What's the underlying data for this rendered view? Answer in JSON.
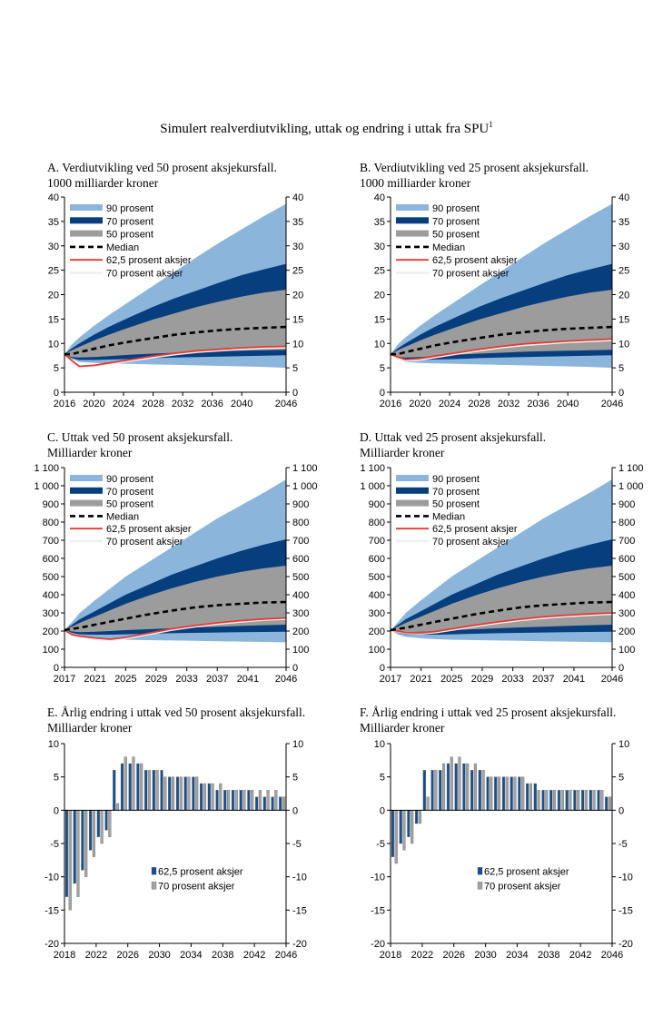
{
  "title": "Simulert realverdiutvikling, uttak og endring i uttak fra SPU",
  "title_footnote": "1",
  "colors": {
    "p90": "#8cb5dc",
    "p70": "#063e7e",
    "p50": "#9c9c9c",
    "median": "#000000",
    "s625": "#e23a32",
    "s70": "#f0efef",
    "bar625": "#17508f",
    "bar70": "#a3a3a3"
  },
  "chart_data": [
    {
      "id": "A",
      "type": "area",
      "title_line1": "A. Verdiutvikling ved 50 prosent aksjekursfall.",
      "title_line2": "1000 milliarder kroner",
      "x_start": 2016,
      "x_end": 2046,
      "x_ticks": [
        "2016",
        "2020",
        "2024",
        "2028",
        "2032",
        "2036",
        "2040",
        "2046"
      ],
      "x_tick_values": [
        2016,
        2020,
        2024,
        2028,
        2032,
        2036,
        2040,
        2046
      ],
      "ylim": [
        0,
        40
      ],
      "y_step": 5,
      "y_ticks": [
        "0",
        "5",
        "10",
        "15",
        "20",
        "25",
        "30",
        "35",
        "40"
      ],
      "legend": [
        "90 prosent",
        "70 prosent",
        "50 prosent",
        "Median",
        "62,5 prosent aksjer",
        "70 prosent aksjer"
      ],
      "series_x": [
        2016,
        2017,
        2018,
        2020,
        2022,
        2025,
        2028,
        2031,
        2034,
        2037,
        2040,
        2043,
        2046
      ],
      "bands": {
        "p90_low": [
          7.8,
          6.8,
          6.2,
          6.0,
          5.9,
          5.8,
          5.7,
          5.6,
          5.5,
          5.4,
          5.3,
          5.2,
          5.0
        ],
        "p70_low": [
          7.8,
          7.0,
          6.6,
          6.6,
          6.7,
          6.8,
          7.0,
          7.1,
          7.2,
          7.3,
          7.4,
          7.5,
          7.6
        ],
        "p50_low": [
          7.8,
          7.2,
          7.1,
          7.2,
          7.4,
          7.7,
          7.9,
          8.1,
          8.3,
          8.4,
          8.5,
          8.6,
          8.7
        ],
        "p50_high": [
          7.8,
          8.6,
          9.3,
          10.6,
          11.8,
          13.4,
          14.9,
          16.2,
          17.5,
          18.6,
          19.6,
          20.4,
          21.0
        ],
        "p70_high": [
          7.8,
          9.0,
          10.0,
          11.8,
          13.4,
          15.5,
          17.5,
          19.3,
          20.9,
          22.5,
          24.0,
          25.2,
          26.3
        ],
        "p90_high": [
          7.8,
          9.8,
          11.2,
          13.6,
          15.8,
          18.8,
          21.8,
          24.8,
          27.8,
          30.7,
          33.4,
          36.1,
          38.6
        ]
      },
      "lines": {
        "median": [
          7.8,
          7.8,
          8.2,
          8.9,
          9.6,
          10.4,
          11.1,
          11.8,
          12.3,
          12.7,
          13.0,
          13.2,
          13.4
        ],
        "s625": [
          7.8,
          6.5,
          5.3,
          5.5,
          6.0,
          6.7,
          7.4,
          8.0,
          8.5,
          8.8,
          9.1,
          9.3,
          9.4
        ],
        "s70": [
          7.8,
          6.3,
          5.0,
          5.3,
          5.8,
          6.5,
          7.2,
          7.8,
          8.3,
          8.6,
          8.9,
          9.1,
          9.2
        ]
      }
    },
    {
      "id": "B",
      "type": "area",
      "title_line1": "B. Verdiutvikling ved 25 prosent aksjekursfall.",
      "title_line2": "1000 milliarder kroner",
      "x_start": 2016,
      "x_end": 2046,
      "x_ticks": [
        "2016",
        "2020",
        "2024",
        "2028",
        "2032",
        "2036",
        "2040",
        "2046"
      ],
      "x_tick_values": [
        2016,
        2020,
        2024,
        2028,
        2032,
        2036,
        2040,
        2046
      ],
      "ylim": [
        0,
        40
      ],
      "y_step": 5,
      "y_ticks": [
        "0",
        "5",
        "10",
        "15",
        "20",
        "25",
        "30",
        "35",
        "40"
      ],
      "legend": [
        "90 prosent",
        "70 prosent",
        "50 prosent",
        "Median",
        "62,5 prosent aksjer",
        "70 prosent aksjer"
      ],
      "series_x": [
        2016,
        2017,
        2018,
        2020,
        2022,
        2025,
        2028,
        2031,
        2034,
        2037,
        2040,
        2043,
        2046
      ],
      "bands": {
        "p90_low": [
          7.8,
          6.8,
          6.2,
          6.0,
          5.9,
          5.8,
          5.7,
          5.6,
          5.5,
          5.4,
          5.3,
          5.2,
          5.0
        ],
        "p70_low": [
          7.8,
          7.0,
          6.6,
          6.6,
          6.7,
          6.8,
          7.0,
          7.1,
          7.2,
          7.3,
          7.4,
          7.5,
          7.6
        ],
        "p50_low": [
          7.8,
          7.2,
          7.1,
          7.2,
          7.4,
          7.7,
          7.9,
          8.1,
          8.3,
          8.4,
          8.5,
          8.6,
          8.7
        ],
        "p50_high": [
          7.8,
          8.6,
          9.3,
          10.6,
          11.8,
          13.4,
          14.9,
          16.2,
          17.5,
          18.6,
          19.6,
          20.4,
          21.0
        ],
        "p70_high": [
          7.8,
          9.0,
          10.0,
          11.8,
          13.4,
          15.5,
          17.5,
          19.3,
          20.9,
          22.5,
          24.0,
          25.2,
          26.3
        ],
        "p90_high": [
          7.8,
          9.8,
          11.2,
          13.6,
          15.8,
          18.8,
          21.8,
          24.8,
          27.8,
          30.7,
          33.4,
          36.1,
          38.6
        ]
      },
      "lines": {
        "median": [
          7.8,
          7.8,
          8.2,
          8.9,
          9.6,
          10.4,
          11.1,
          11.8,
          12.3,
          12.7,
          13.0,
          13.2,
          13.4
        ],
        "s625": [
          7.8,
          7.2,
          6.7,
          6.9,
          7.4,
          8.1,
          8.8,
          9.4,
          9.9,
          10.2,
          10.5,
          10.7,
          10.9
        ],
        "s70": [
          7.8,
          7.0,
          6.5,
          6.7,
          7.2,
          7.9,
          8.6,
          9.2,
          9.7,
          10.0,
          10.3,
          10.5,
          10.7
        ]
      }
    },
    {
      "id": "C",
      "type": "area",
      "title_line1": "C. Uttak ved 50 prosent aksjekursfall.",
      "title_line2": "Milliarder kroner",
      "x_start": 2017,
      "x_end": 2046,
      "x_ticks": [
        "2017",
        "2021",
        "2025",
        "2029",
        "2033",
        "2037",
        "2041",
        "2046"
      ],
      "x_tick_values": [
        2017,
        2021,
        2025,
        2029,
        2033,
        2037,
        2041,
        2046
      ],
      "ylim": [
        0,
        1100
      ],
      "y_step": 100,
      "y_ticks": [
        "0",
        "100",
        "200",
        "300",
        "400",
        "500",
        "600",
        "700",
        "800",
        "900",
        "1 000",
        "1 100"
      ],
      "legend": [
        "90 prosent",
        "70 prosent",
        "50 prosent",
        "Median",
        "62,5 prosent aksjer",
        "70 prosent aksjer"
      ],
      "series_x": [
        2017,
        2018,
        2019,
        2021,
        2023,
        2025,
        2028,
        2031,
        2034,
        2037,
        2040,
        2043,
        2046
      ],
      "bands": {
        "p90_low": [
          205,
          180,
          168,
          160,
          155,
          152,
          150,
          148,
          146,
          144,
          142,
          140,
          138
        ],
        "p70_low": [
          205,
          190,
          182,
          180,
          180,
          182,
          185,
          188,
          190,
          192,
          194,
          195,
          196
        ],
        "p50_low": [
          205,
          198,
          194,
          196,
          200,
          205,
          210,
          215,
          220,
          224,
          228,
          232,
          235
        ],
        "p50_high": [
          205,
          225,
          245,
          280,
          315,
          350,
          395,
          435,
          470,
          500,
          525,
          545,
          560
        ],
        "p70_high": [
          205,
          235,
          265,
          310,
          355,
          400,
          455,
          510,
          555,
          600,
          640,
          675,
          705
        ],
        "p90_high": [
          205,
          250,
          300,
          370,
          435,
          500,
          580,
          660,
          740,
          820,
          890,
          960,
          1035
        ]
      },
      "lines": {
        "median": [
          205,
          212,
          218,
          235,
          252,
          268,
          292,
          312,
          330,
          342,
          350,
          357,
          360
        ],
        "s625": [
          205,
          180,
          172,
          162,
          155,
          165,
          188,
          212,
          230,
          245,
          257,
          266,
          272
        ],
        "s70": [
          205,
          178,
          170,
          158,
          150,
          160,
          183,
          207,
          225,
          240,
          252,
          262,
          268
        ]
      }
    },
    {
      "id": "D",
      "type": "area",
      "title_line1": "D. Uttak ved 25 prosent aksjekursfall.",
      "title_line2": "Milliarder kroner",
      "x_start": 2017,
      "x_end": 2046,
      "x_ticks": [
        "2017",
        "2021",
        "2025",
        "2029",
        "2033",
        "2037",
        "2041",
        "2046"
      ],
      "x_tick_values": [
        2017,
        2021,
        2025,
        2029,
        2033,
        2037,
        2041,
        2046
      ],
      "ylim": [
        0,
        1100
      ],
      "y_step": 100,
      "y_ticks": [
        "0",
        "100",
        "200",
        "300",
        "400",
        "500",
        "600",
        "700",
        "800",
        "900",
        "1 000",
        "1 100"
      ],
      "legend": [
        "90 prosent",
        "70 prosent",
        "50 prosent",
        "Median",
        "62,5 prosent aksjer",
        "70 prosent aksjer"
      ],
      "series_x": [
        2017,
        2018,
        2019,
        2021,
        2023,
        2025,
        2028,
        2031,
        2034,
        2037,
        2040,
        2043,
        2046
      ],
      "bands": {
        "p90_low": [
          205,
          180,
          168,
          160,
          155,
          152,
          150,
          148,
          146,
          144,
          142,
          140,
          138
        ],
        "p70_low": [
          205,
          190,
          182,
          180,
          180,
          182,
          185,
          188,
          190,
          192,
          194,
          195,
          196
        ],
        "p50_low": [
          205,
          198,
          194,
          196,
          200,
          205,
          210,
          215,
          220,
          224,
          228,
          232,
          235
        ],
        "p50_high": [
          205,
          225,
          245,
          280,
          315,
          350,
          395,
          435,
          470,
          500,
          525,
          545,
          560
        ],
        "p70_high": [
          205,
          235,
          265,
          310,
          355,
          400,
          455,
          510,
          555,
          600,
          640,
          675,
          705
        ],
        "p90_high": [
          205,
          250,
          300,
          370,
          435,
          500,
          580,
          660,
          740,
          820,
          890,
          960,
          1035
        ]
      },
      "lines": {
        "median": [
          205,
          212,
          218,
          235,
          252,
          268,
          292,
          312,
          330,
          342,
          350,
          357,
          360
        ],
        "s625": [
          205,
          200,
          192,
          190,
          198,
          212,
          232,
          250,
          265,
          278,
          287,
          294,
          300
        ],
        "s70": [
          205,
          198,
          190,
          187,
          194,
          207,
          227,
          245,
          260,
          273,
          282,
          289,
          295
        ]
      }
    },
    {
      "id": "E",
      "type": "bar",
      "title_line1": "E. Årlig endring i uttak ved 50 prosent aksjekursfall.",
      "title_line2": "Milliarder kroner",
      "x_start": 2018,
      "x_end": 2046,
      "x_ticks": [
        "2018",
        "2022",
        "2026",
        "2030",
        "2034",
        "2038",
        "2042",
        "2046"
      ],
      "x_tick_values": [
        2018,
        2022,
        2026,
        2030,
        2034,
        2038,
        2042,
        2046
      ],
      "ylim": [
        -20,
        10
      ],
      "y_step": 5,
      "y_ticks_left": [
        "-20",
        "-15",
        "-10",
        "-5",
        "0",
        "5",
        "10"
      ],
      "y_ticks_right": [
        "-20",
        "-15",
        "-10",
        "-5",
        "0",
        "5",
        "10"
      ],
      "legend": [
        "62,5 prosent aksjer",
        "70 prosent aksjer"
      ],
      "categories": [
        2018,
        2019,
        2020,
        2021,
        2022,
        2023,
        2024,
        2025,
        2026,
        2027,
        2028,
        2029,
        2030,
        2031,
        2032,
        2033,
        2034,
        2035,
        2036,
        2037,
        2038,
        2039,
        2040,
        2041,
        2042,
        2043,
        2044,
        2045
      ],
      "series": [
        {
          "name": "62,5 prosent aksjer",
          "values": [
            -13,
            -11,
            -9,
            -6,
            -4,
            -3,
            6,
            7,
            7,
            7,
            6,
            6,
            6,
            5,
            5,
            5,
            5,
            4,
            4,
            3,
            3,
            3,
            3,
            3,
            2,
            2,
            2,
            2
          ]
        },
        {
          "name": "70 prosent aksjer",
          "values": [
            -15,
            -13,
            -10,
            -7,
            -5,
            -4,
            1,
            8,
            8,
            7,
            6,
            6,
            5,
            5,
            5,
            5,
            5,
            4,
            4,
            4,
            3,
            3,
            3,
            3,
            3,
            3,
            3,
            2
          ]
        }
      ]
    },
    {
      "id": "F",
      "type": "bar",
      "title_line1": "F. Årlig endring i uttak ved 25 prosent aksjekursfall.",
      "title_line2": "Milliarder kroner",
      "x_start": 2018,
      "x_end": 2046,
      "x_ticks": [
        "2018",
        "2022",
        "2026",
        "2030",
        "2034",
        "2038",
        "2042",
        "2046"
      ],
      "x_tick_values": [
        2018,
        2022,
        2026,
        2030,
        2034,
        2038,
        2042,
        2046
      ],
      "ylim": [
        -20,
        10
      ],
      "y_step": 5,
      "y_ticks_left": [
        "-20",
        "-15",
        "-10",
        "-5",
        "0",
        "5",
        "10"
      ],
      "y_ticks_right": [
        "-20",
        "-15",
        "-10",
        "-5",
        "0",
        "5",
        "10"
      ],
      "legend": [
        "62,5 prosent aksjer",
        "70 prosent aksjer"
      ],
      "categories": [
        2018,
        2019,
        2020,
        2021,
        2022,
        2023,
        2024,
        2025,
        2026,
        2027,
        2028,
        2029,
        2030,
        2031,
        2032,
        2033,
        2034,
        2035,
        2036,
        2037,
        2038,
        2039,
        2040,
        2041,
        2042,
        2043,
        2044,
        2045
      ],
      "series": [
        {
          "name": "62,5 prosent aksjer",
          "values": [
            -7,
            -5,
            -4,
            -2,
            6,
            6,
            6,
            7,
            7,
            7,
            6,
            6,
            5,
            5,
            5,
            5,
            5,
            4,
            4,
            3,
            3,
            3,
            3,
            3,
            3,
            3,
            3,
            2
          ]
        },
        {
          "name": "70 prosent aksjer",
          "values": [
            -8,
            -6,
            -5,
            -2,
            2,
            6,
            7,
            8,
            8,
            7,
            7,
            6,
            5,
            5,
            5,
            5,
            5,
            4,
            3,
            3,
            3,
            3,
            3,
            3,
            3,
            3,
            3,
            2
          ]
        }
      ]
    }
  ]
}
